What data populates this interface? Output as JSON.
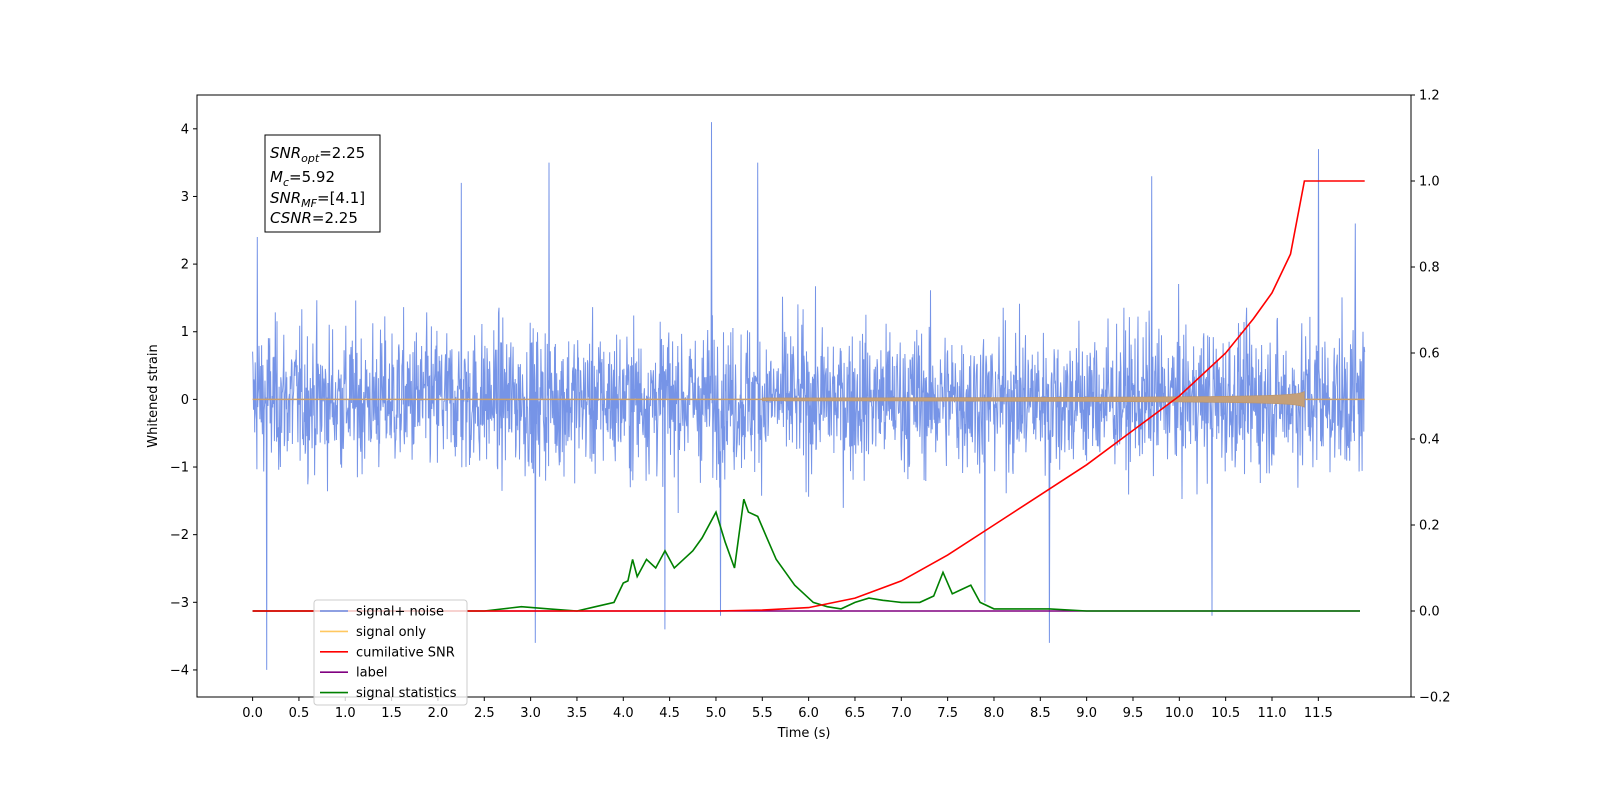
{
  "chart_data": {
    "type": "line",
    "xlabel": "Time (s)",
    "ylabel": "Whitened strain",
    "xlim": [
      -0.6,
      12.5
    ],
    "ylim": [
      -4.4,
      4.5
    ],
    "y2lim": [
      -0.2,
      1.2
    ],
    "x_ticks": [
      0.0,
      0.5,
      1.0,
      1.5,
      2.0,
      2.5,
      3.0,
      3.5,
      4.0,
      4.5,
      5.0,
      5.5,
      6.0,
      6.5,
      7.0,
      7.5,
      8.0,
      8.5,
      9.0,
      9.5,
      10.0,
      10.5,
      11.0,
      11.5
    ],
    "x_tick_labels": [
      "0.0",
      "0.5",
      "1.0",
      "1.5",
      "2.0",
      "2.5",
      "3.0",
      "3.5",
      "4.0",
      "4.5",
      "5.0",
      "5.5",
      "6.0",
      "6.5",
      "7.0",
      "7.5",
      "8.0",
      "8.5",
      "9.0",
      "9.5",
      "10.0",
      "10.5",
      "11.0",
      "11.5"
    ],
    "y_ticks": [
      -4,
      -3,
      -2,
      -1,
      0,
      1,
      2,
      3,
      4
    ],
    "y_tick_labels": [
      "−4",
      "−3",
      "−2",
      "−1",
      "0",
      "1",
      "2",
      "3",
      "4"
    ],
    "y2_ticks": [
      -0.2,
      0.0,
      0.2,
      0.4,
      0.6,
      0.8,
      1.0,
      1.2
    ],
    "y2_tick_labels": [
      "−0.2",
      "0.0",
      "0.2",
      "0.4",
      "0.6",
      "0.8",
      "1.0",
      "1.2"
    ],
    "annotation": {
      "snr_opt": {
        "main": "SNR",
        "sub": "opt",
        "value": "=2.25"
      },
      "mc": {
        "main": "M",
        "sub": "c",
        "value": "=5.92"
      },
      "snr_mf": {
        "main": "SNR",
        "sub": "MF",
        "value": "=[4.1]"
      },
      "csnr": {
        "main": "CSNR",
        "value": "=2.25"
      }
    },
    "legend_position": "lower-left",
    "series": [
      {
        "name": "signal+ noise",
        "color": "#6f8ee6",
        "axis": "left",
        "x_range": [
          0.0,
          12.0
        ],
        "amplitude_approx": 2.3,
        "extremes": [
          [
            0.05,
            2.4
          ],
          [
            0.15,
            -4.0
          ],
          [
            2.25,
            3.2
          ],
          [
            3.05,
            -3.6
          ],
          [
            3.2,
            3.5
          ],
          [
            4.45,
            -3.4
          ],
          [
            4.95,
            4.1
          ],
          [
            5.05,
            -3.2
          ],
          [
            5.45,
            3.5
          ],
          [
            7.9,
            -3.0
          ],
          [
            8.6,
            -3.6
          ],
          [
            9.7,
            3.3
          ],
          [
            10.35,
            -3.2
          ],
          [
            11.5,
            3.7
          ],
          [
            11.9,
            2.6
          ]
        ]
      },
      {
        "name": "signal only",
        "color": "#f0c070",
        "axis": "left",
        "x_range": [
          0.0,
          12.0
        ],
        "envelope_end_time": 11.35,
        "envelope_max": 0.25
      },
      {
        "name": "cumilative SNR",
        "color": "#ff0000",
        "axis": "right",
        "x": [
          0.0,
          5.0,
          5.5,
          6.0,
          6.5,
          7.0,
          7.5,
          8.0,
          8.5,
          9.0,
          9.5,
          10.0,
          10.5,
          10.8,
          11.0,
          11.2,
          11.35,
          12.0
        ],
        "y": [
          0.0,
          0.0,
          0.002,
          0.008,
          0.03,
          0.07,
          0.13,
          0.2,
          0.27,
          0.34,
          0.42,
          0.5,
          0.6,
          0.68,
          0.74,
          0.83,
          1.0,
          1.0
        ]
      },
      {
        "name": "label",
        "color": "#800080",
        "axis": "right",
        "x": [
          0.0,
          11.95
        ],
        "y": [
          0.0,
          0.0
        ]
      },
      {
        "name": "signal statistics",
        "color": "#008000",
        "axis": "right",
        "x": [
          0.0,
          2.5,
          2.9,
          3.2,
          3.5,
          3.7,
          3.9,
          4.0,
          4.05,
          4.1,
          4.15,
          4.25,
          4.35,
          4.45,
          4.55,
          4.65,
          4.75,
          4.85,
          5.0,
          5.1,
          5.2,
          5.3,
          5.35,
          5.45,
          5.55,
          5.65,
          5.75,
          5.85,
          5.95,
          6.05,
          6.2,
          6.35,
          6.5,
          6.65,
          6.8,
          7.0,
          7.2,
          7.35,
          7.45,
          7.55,
          7.65,
          7.75,
          7.85,
          8.0,
          8.3,
          8.6,
          9.0,
          11.95
        ],
        "y": [
          0.0,
          0.0,
          0.01,
          0.005,
          0.0,
          0.01,
          0.02,
          0.065,
          0.07,
          0.12,
          0.08,
          0.12,
          0.1,
          0.14,
          0.1,
          0.12,
          0.14,
          0.17,
          0.23,
          0.16,
          0.1,
          0.26,
          0.23,
          0.22,
          0.17,
          0.12,
          0.09,
          0.06,
          0.04,
          0.02,
          0.01,
          0.005,
          0.02,
          0.03,
          0.025,
          0.02,
          0.02,
          0.035,
          0.09,
          0.04,
          0.05,
          0.06,
          0.02,
          0.005,
          0.005,
          0.005,
          0.0,
          0.0
        ]
      }
    ]
  }
}
